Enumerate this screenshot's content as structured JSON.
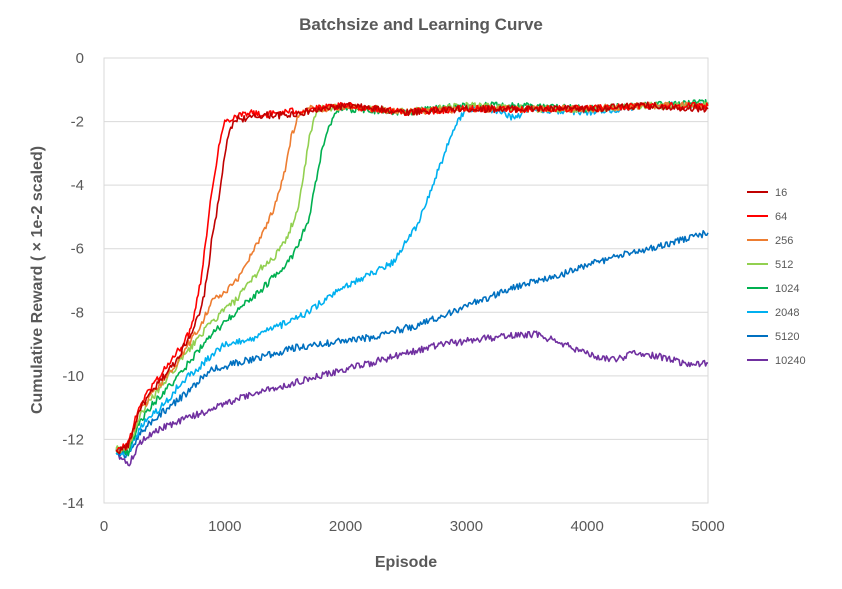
{
  "chart_data": {
    "type": "line",
    "title": "Batchsize and Learning Curve",
    "xlabel": "Episode",
    "ylabel": "Cumulative Reward ( × 1e-2  scaled)",
    "xlim": [
      0,
      5000
    ],
    "ylim": [
      -14,
      0
    ],
    "x_ticks": [
      "0",
      "1000",
      "2000",
      "3000",
      "4000",
      "5000"
    ],
    "y_ticks": [
      "0",
      "-2",
      "-4",
      "-6",
      "-8",
      "-10",
      "-12",
      "-14"
    ],
    "grid": "horizontal",
    "legend_position": "right",
    "series": [
      {
        "name": "16",
        "color": "#c00000",
        "points": [
          [
            100,
            -12.4
          ],
          [
            200,
            -12.2
          ],
          [
            300,
            -11.0
          ],
          [
            400,
            -10.5
          ],
          [
            500,
            -10.0
          ],
          [
            600,
            -9.5
          ],
          [
            700,
            -8.8
          ],
          [
            800,
            -8.0
          ],
          [
            850,
            -7.0
          ],
          [
            900,
            -5.5
          ],
          [
            950,
            -4.5
          ],
          [
            1000,
            -3.0
          ],
          [
            1050,
            -2.2
          ],
          [
            1100,
            -1.9
          ],
          [
            1200,
            -1.9
          ],
          [
            1300,
            -1.8
          ],
          [
            1500,
            -1.8
          ],
          [
            2000,
            -1.5
          ],
          [
            2500,
            -1.7
          ],
          [
            3000,
            -1.6
          ],
          [
            3500,
            -1.6
          ],
          [
            4000,
            -1.6
          ],
          [
            4500,
            -1.5
          ],
          [
            5000,
            -1.6
          ]
        ]
      },
      {
        "name": "64",
        "color": "#ff0000",
        "points": [
          [
            100,
            -12.4
          ],
          [
            200,
            -12.1
          ],
          [
            300,
            -10.9
          ],
          [
            400,
            -10.3
          ],
          [
            500,
            -9.8
          ],
          [
            600,
            -9.3
          ],
          [
            700,
            -8.7
          ],
          [
            750,
            -8.0
          ],
          [
            800,
            -7.0
          ],
          [
            850,
            -5.5
          ],
          [
            900,
            -4.0
          ],
          [
            950,
            -2.8
          ],
          [
            1000,
            -2.0
          ],
          [
            1100,
            -1.8
          ],
          [
            1200,
            -1.7
          ],
          [
            1300,
            -1.8
          ],
          [
            1500,
            -1.7
          ],
          [
            2000,
            -1.5
          ],
          [
            2500,
            -1.7
          ],
          [
            3000,
            -1.6
          ],
          [
            3500,
            -1.6
          ],
          [
            4000,
            -1.6
          ],
          [
            4500,
            -1.5
          ],
          [
            5000,
            -1.5
          ]
        ]
      },
      {
        "name": "256",
        "color": "#ed7d31",
        "points": [
          [
            100,
            -12.4
          ],
          [
            200,
            -12.2
          ],
          [
            300,
            -11.1
          ],
          [
            400,
            -10.6
          ],
          [
            500,
            -10.1
          ],
          [
            600,
            -9.6
          ],
          [
            700,
            -9.0
          ],
          [
            800,
            -8.4
          ],
          [
            900,
            -7.6
          ],
          [
            1000,
            -7.4
          ],
          [
            1100,
            -7.0
          ],
          [
            1200,
            -6.3
          ],
          [
            1300,
            -5.6
          ],
          [
            1400,
            -4.8
          ],
          [
            1500,
            -3.5
          ],
          [
            1550,
            -2.5
          ],
          [
            1600,
            -1.9
          ],
          [
            1700,
            -1.6
          ],
          [
            1800,
            -1.6
          ],
          [
            2000,
            -1.5
          ],
          [
            2500,
            -1.7
          ],
          [
            3000,
            -1.6
          ],
          [
            3500,
            -1.6
          ],
          [
            4000,
            -1.6
          ],
          [
            4500,
            -1.5
          ],
          [
            5000,
            -1.5
          ]
        ]
      },
      {
        "name": "512",
        "color": "#92d050",
        "points": [
          [
            100,
            -12.3
          ],
          [
            200,
            -12.3
          ],
          [
            300,
            -11.2
          ],
          [
            400,
            -10.7
          ],
          [
            500,
            -10.2
          ],
          [
            600,
            -9.7
          ],
          [
            700,
            -9.2
          ],
          [
            800,
            -8.7
          ],
          [
            900,
            -8.3
          ],
          [
            1000,
            -7.9
          ],
          [
            1100,
            -7.6
          ],
          [
            1200,
            -7.1
          ],
          [
            1300,
            -6.6
          ],
          [
            1400,
            -6.3
          ],
          [
            1500,
            -5.8
          ],
          [
            1600,
            -4.8
          ],
          [
            1650,
            -3.8
          ],
          [
            1700,
            -2.5
          ],
          [
            1750,
            -1.8
          ],
          [
            1800,
            -1.6
          ],
          [
            2000,
            -1.5
          ],
          [
            2500,
            -1.7
          ],
          [
            3000,
            -1.5
          ],
          [
            3500,
            -1.6
          ],
          [
            4000,
            -1.6
          ],
          [
            4500,
            -1.5
          ],
          [
            5000,
            -1.5
          ]
        ]
      },
      {
        "name": "1024",
        "color": "#00b050",
        "points": [
          [
            100,
            -12.3
          ],
          [
            200,
            -12.4
          ],
          [
            300,
            -11.4
          ],
          [
            400,
            -10.9
          ],
          [
            500,
            -10.5
          ],
          [
            600,
            -10.1
          ],
          [
            700,
            -9.6
          ],
          [
            800,
            -9.1
          ],
          [
            900,
            -8.7
          ],
          [
            1000,
            -8.3
          ],
          [
            1100,
            -8.0
          ],
          [
            1200,
            -7.6
          ],
          [
            1300,
            -7.3
          ],
          [
            1400,
            -6.9
          ],
          [
            1500,
            -6.5
          ],
          [
            1600,
            -6.0
          ],
          [
            1700,
            -5.0
          ],
          [
            1750,
            -4.0
          ],
          [
            1800,
            -3.0
          ],
          [
            1850,
            -2.3
          ],
          [
            1900,
            -1.9
          ],
          [
            1950,
            -1.6
          ],
          [
            2000,
            -1.6
          ],
          [
            2500,
            -1.7
          ],
          [
            3000,
            -1.5
          ],
          [
            3500,
            -1.5
          ],
          [
            4000,
            -1.6
          ],
          [
            4500,
            -1.5
          ],
          [
            5000,
            -1.4
          ]
        ]
      },
      {
        "name": "2048",
        "color": "#00b0f0",
        "points": [
          [
            100,
            -12.4
          ],
          [
            200,
            -12.4
          ],
          [
            300,
            -11.6
          ],
          [
            400,
            -11.2
          ],
          [
            500,
            -10.9
          ],
          [
            600,
            -10.4
          ],
          [
            700,
            -10.0
          ],
          [
            800,
            -9.7
          ],
          [
            900,
            -9.3
          ],
          [
            1000,
            -9.0
          ],
          [
            1200,
            -8.9
          ],
          [
            1400,
            -8.5
          ],
          [
            1600,
            -8.2
          ],
          [
            1800,
            -7.7
          ],
          [
            2000,
            -7.2
          ],
          [
            2200,
            -6.8
          ],
          [
            2400,
            -6.4
          ],
          [
            2500,
            -5.8
          ],
          [
            2600,
            -5.2
          ],
          [
            2700,
            -4.2
          ],
          [
            2800,
            -3.2
          ],
          [
            2900,
            -2.2
          ],
          [
            3000,
            -1.6
          ],
          [
            3200,
            -1.6
          ],
          [
            3400,
            -1.9
          ],
          [
            3500,
            -1.6
          ],
          [
            4000,
            -1.7
          ],
          [
            4500,
            -1.5
          ],
          [
            5000,
            -1.5
          ]
        ]
      },
      {
        "name": "5120",
        "color": "#0070c0",
        "points": [
          [
            100,
            -12.4
          ],
          [
            200,
            -12.5
          ],
          [
            300,
            -11.8
          ],
          [
            400,
            -11.4
          ],
          [
            500,
            -11.1
          ],
          [
            600,
            -10.8
          ],
          [
            700,
            -10.5
          ],
          [
            800,
            -10.1
          ],
          [
            900,
            -9.8
          ],
          [
            1000,
            -9.7
          ],
          [
            1200,
            -9.5
          ],
          [
            1400,
            -9.3
          ],
          [
            1600,
            -9.1
          ],
          [
            1800,
            -9.0
          ],
          [
            2000,
            -8.9
          ],
          [
            2200,
            -8.8
          ],
          [
            2400,
            -8.6
          ],
          [
            2600,
            -8.4
          ],
          [
            2800,
            -8.1
          ],
          [
            3000,
            -7.8
          ],
          [
            3200,
            -7.5
          ],
          [
            3400,
            -7.2
          ],
          [
            3600,
            -7.0
          ],
          [
            3800,
            -6.8
          ],
          [
            4000,
            -6.5
          ],
          [
            4200,
            -6.3
          ],
          [
            4400,
            -6.1
          ],
          [
            4600,
            -5.9
          ],
          [
            4800,
            -5.7
          ],
          [
            5000,
            -5.5
          ]
        ]
      },
      {
        "name": "10240",
        "color": "#7030a0",
        "points": [
          [
            100,
            -12.4
          ],
          [
            200,
            -12.8
          ],
          [
            300,
            -12.1
          ],
          [
            400,
            -11.8
          ],
          [
            500,
            -11.6
          ],
          [
            600,
            -11.5
          ],
          [
            700,
            -11.3
          ],
          [
            800,
            -11.2
          ],
          [
            900,
            -11.0
          ],
          [
            1000,
            -10.9
          ],
          [
            1200,
            -10.6
          ],
          [
            1400,
            -10.4
          ],
          [
            1600,
            -10.2
          ],
          [
            1800,
            -10.0
          ],
          [
            2000,
            -9.8
          ],
          [
            2200,
            -9.6
          ],
          [
            2400,
            -9.4
          ],
          [
            2600,
            -9.2
          ],
          [
            2800,
            -9.0
          ],
          [
            3000,
            -8.9
          ],
          [
            3200,
            -8.8
          ],
          [
            3400,
            -8.7
          ],
          [
            3600,
            -8.7
          ],
          [
            3800,
            -9.0
          ],
          [
            4000,
            -9.3
          ],
          [
            4200,
            -9.5
          ],
          [
            4400,
            -9.3
          ],
          [
            4600,
            -9.4
          ],
          [
            4800,
            -9.6
          ],
          [
            5000,
            -9.6
          ]
        ]
      }
    ]
  }
}
